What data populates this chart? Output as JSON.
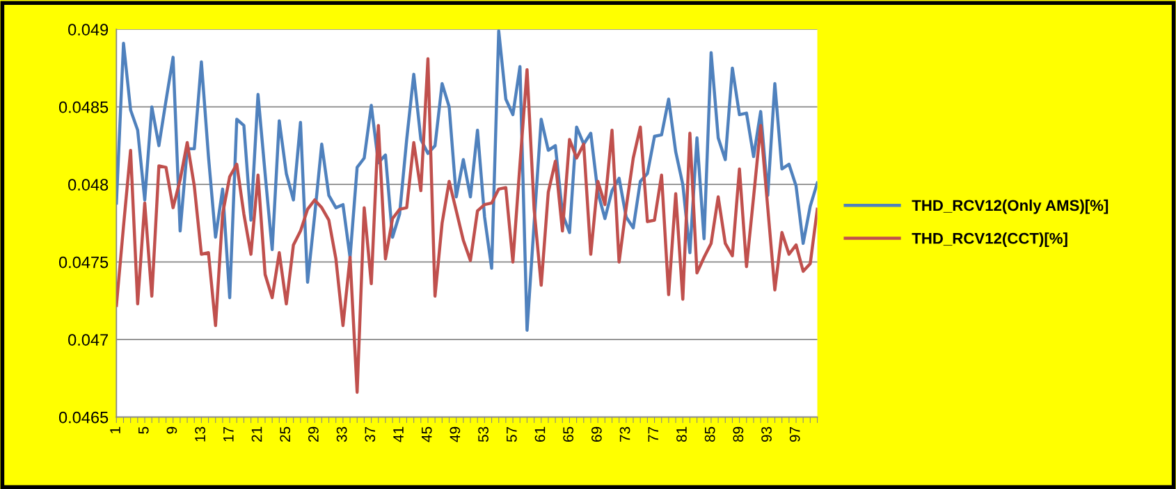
{
  "chart_data": {
    "type": "line",
    "categories": [
      "1",
      null,
      null,
      null,
      "5",
      null,
      null,
      null,
      "9",
      null,
      null,
      null,
      "13",
      null,
      null,
      null,
      "17",
      null,
      null,
      null,
      "21",
      null,
      null,
      null,
      "25",
      null,
      null,
      null,
      "29",
      null,
      null,
      null,
      "33",
      null,
      null,
      null,
      "37",
      null,
      null,
      null,
      "41",
      null,
      null,
      null,
      "45",
      null,
      null,
      null,
      "49",
      null,
      null,
      null,
      "53",
      null,
      null,
      null,
      "57",
      null,
      null,
      null,
      "61",
      null,
      null,
      null,
      "65",
      null,
      null,
      null,
      "69",
      null,
      null,
      null,
      "73",
      null,
      null,
      null,
      "77",
      null,
      null,
      null,
      "81",
      null,
      null,
      null,
      "85",
      null,
      null,
      null,
      "89",
      null,
      null,
      null,
      "93",
      null,
      null,
      null,
      "97",
      null,
      null,
      null
    ],
    "series": [
      {
        "name": "THD_RCV12(Only AMS)[%]",
        "color": "#4f81bd",
        "values": [
          0.04788,
          0.04891,
          0.04848,
          0.04835,
          0.0479,
          0.0485,
          0.04825,
          0.04854,
          0.04882,
          0.0477,
          0.04823,
          0.04823,
          0.04879,
          0.04818,
          0.04766,
          0.04797,
          0.04727,
          0.04842,
          0.04838,
          0.04777,
          0.04858,
          0.04807,
          0.04758,
          0.04841,
          0.04807,
          0.0479,
          0.0484,
          0.04737,
          0.0478,
          0.04826,
          0.04793,
          0.04785,
          0.04787,
          0.04753,
          0.04811,
          0.04817,
          0.04851,
          0.04814,
          0.04819,
          0.04766,
          0.04781,
          0.04829,
          0.04871,
          0.04829,
          0.0482,
          0.04825,
          0.04865,
          0.0485,
          0.04792,
          0.04816,
          0.04792,
          0.04835,
          0.04779,
          0.04746,
          0.04899,
          0.04855,
          0.04845,
          0.04876,
          0.04706,
          0.04775,
          0.04842,
          0.04822,
          0.04825,
          0.04781,
          0.04769,
          0.04837,
          0.04826,
          0.04833,
          0.04795,
          0.04778,
          0.04796,
          0.04804,
          0.04779,
          0.04772,
          0.04802,
          0.04807,
          0.04831,
          0.04832,
          0.04855,
          0.04821,
          0.048,
          0.04756,
          0.0483,
          0.04765,
          0.04885,
          0.0483,
          0.04816,
          0.04875,
          0.04845,
          0.04846,
          0.04818,
          0.04847,
          0.04793,
          0.04865,
          0.0481,
          0.04813,
          0.04799,
          0.04762,
          0.04786,
          0.04801
        ]
      },
      {
        "name": "THD_RCV12(CCT)[%]",
        "color": "#c0504d",
        "values": [
          0.04722,
          0.04773,
          0.04822,
          0.04723,
          0.04788,
          0.04728,
          0.04812,
          0.04811,
          0.04785,
          0.04803,
          0.04827,
          0.04799,
          0.04755,
          0.04756,
          0.04709,
          0.04781,
          0.04805,
          0.04813,
          0.04781,
          0.04755,
          0.04806,
          0.04742,
          0.04727,
          0.04756,
          0.04723,
          0.04761,
          0.0477,
          0.04784,
          0.0479,
          0.04785,
          0.04777,
          0.04752,
          0.04709,
          0.04753,
          0.04666,
          0.04785,
          0.04736,
          0.04838,
          0.04752,
          0.04778,
          0.04784,
          0.04785,
          0.04827,
          0.04796,
          0.04881,
          0.04728,
          0.04775,
          0.04802,
          0.04783,
          0.04764,
          0.04751,
          0.04783,
          0.04787,
          0.04788,
          0.04797,
          0.04798,
          0.0475,
          0.04813,
          0.04874,
          0.04784,
          0.04735,
          0.04795,
          0.04815,
          0.0477,
          0.04829,
          0.04817,
          0.04826,
          0.04755,
          0.04802,
          0.04787,
          0.04835,
          0.0475,
          0.04785,
          0.04817,
          0.04837,
          0.04776,
          0.04777,
          0.04806,
          0.04729,
          0.04794,
          0.04726,
          0.04833,
          0.04743,
          0.04753,
          0.04762,
          0.04792,
          0.04762,
          0.04754,
          0.0481,
          0.04747,
          0.04792,
          0.04838,
          0.04785,
          0.04732,
          0.04769,
          0.04755,
          0.04761,
          0.04744,
          0.04749,
          0.04784
        ]
      }
    ],
    "ylim": [
      0.0465,
      0.049
    ],
    "yticks": [
      0.0465,
      0.047,
      0.0475,
      0.048,
      0.0485,
      0.049
    ],
    "grid": "y",
    "legend": "right",
    "marker": "none",
    "line_style": "solid"
  }
}
